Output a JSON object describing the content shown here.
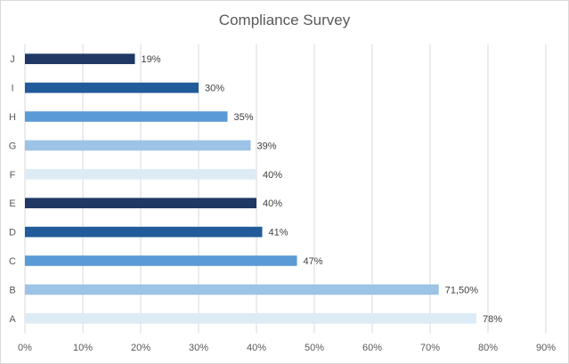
{
  "chart_data": {
    "type": "bar",
    "orientation": "horizontal",
    "title": "Compliance Survey",
    "categories": [
      "A",
      "B",
      "C",
      "D",
      "E",
      "F",
      "G",
      "H",
      "I",
      "J"
    ],
    "values": [
      78,
      71.5,
      47,
      41,
      40,
      40,
      39,
      35,
      30,
      19
    ],
    "data_labels": [
      "78%",
      "71,50%",
      "47%",
      "41%",
      "40%",
      "40%",
      "39%",
      "35%",
      "30%",
      "19%"
    ],
    "colors": [
      "#ddebf7",
      "#9dc3e6",
      "#5b9bd5",
      "#1f5c99",
      "#1f3864",
      "#ddebf7",
      "#9dc3e6",
      "#5b9bd5",
      "#1f5c99",
      "#1f3864"
    ],
    "xlim": [
      0,
      90
    ],
    "x_ticks": [
      "0%",
      "10%",
      "20%",
      "30%",
      "40%",
      "50%",
      "60%",
      "70%",
      "80%",
      "90%"
    ],
    "xlabel": "",
    "ylabel": "",
    "grid": "vertical",
    "legend": "none"
  }
}
